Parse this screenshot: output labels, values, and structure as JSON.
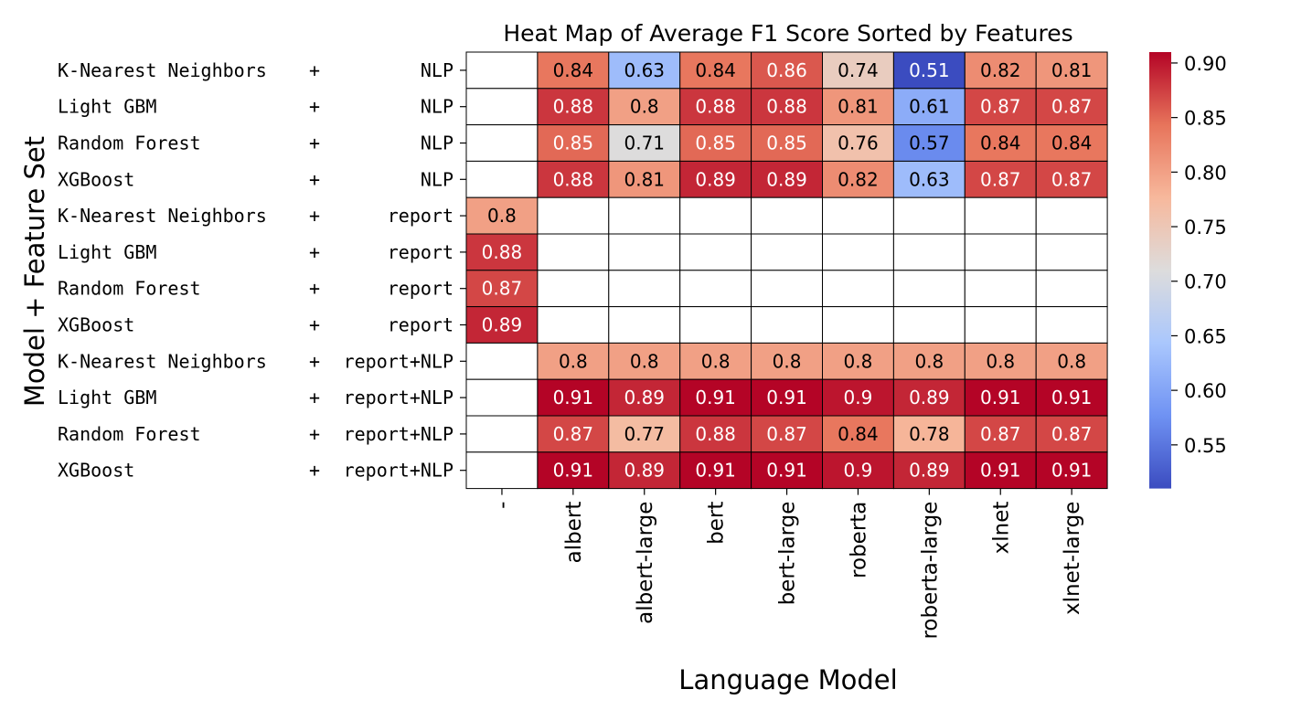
{
  "chart_data": {
    "type": "heatmap",
    "title": "Heat Map of Average F1 Score Sorted by Features",
    "xlabel": "Language Model",
    "ylabel": "Model + Feature Set",
    "columns": [
      "-",
      "albert",
      "albert-large",
      "bert",
      "bert-large",
      "roberta",
      "roberta-large",
      "xlnet",
      "xlnet-large"
    ],
    "rows": [
      {
        "model": "K-Nearest Neighbors",
        "sep": "+",
        "feature": "NLP"
      },
      {
        "model": "Light GBM",
        "sep": "+",
        "feature": "NLP"
      },
      {
        "model": "Random Forest",
        "sep": "+",
        "feature": "NLP"
      },
      {
        "model": "XGBoost",
        "sep": "+",
        "feature": "NLP"
      },
      {
        "model": "K-Nearest Neighbors",
        "sep": "+",
        "feature": "report"
      },
      {
        "model": "Light GBM",
        "sep": "+",
        "feature": "report"
      },
      {
        "model": "Random Forest",
        "sep": "+",
        "feature": "report"
      },
      {
        "model": "XGBoost",
        "sep": "+",
        "feature": "report"
      },
      {
        "model": "K-Nearest Neighbors",
        "sep": "+",
        "feature": "report+NLP"
      },
      {
        "model": "Light GBM",
        "sep": "+",
        "feature": "report+NLP"
      },
      {
        "model": "Random Forest",
        "sep": "+",
        "feature": "report+NLP"
      },
      {
        "model": "XGBoost",
        "sep": "+",
        "feature": "report+NLP"
      }
    ],
    "values": [
      [
        null,
        0.84,
        0.63,
        0.84,
        0.86,
        0.74,
        0.51,
        0.82,
        0.81
      ],
      [
        null,
        0.88,
        0.8,
        0.88,
        0.88,
        0.81,
        0.61,
        0.87,
        0.87
      ],
      [
        null,
        0.85,
        0.71,
        0.85,
        0.85,
        0.76,
        0.57,
        0.84,
        0.84
      ],
      [
        null,
        0.88,
        0.81,
        0.89,
        0.89,
        0.82,
        0.63,
        0.87,
        0.87
      ],
      [
        0.8,
        null,
        null,
        null,
        null,
        null,
        null,
        null,
        null
      ],
      [
        0.88,
        null,
        null,
        null,
        null,
        null,
        null,
        null,
        null
      ],
      [
        0.87,
        null,
        null,
        null,
        null,
        null,
        null,
        null,
        null
      ],
      [
        0.89,
        null,
        null,
        null,
        null,
        null,
        null,
        null,
        null
      ],
      [
        null,
        0.8,
        0.8,
        0.8,
        0.8,
        0.8,
        0.8,
        0.8,
        0.8
      ],
      [
        null,
        0.91,
        0.89,
        0.91,
        0.91,
        0.9,
        0.89,
        0.91,
        0.91
      ],
      [
        null,
        0.87,
        0.77,
        0.88,
        0.87,
        0.84,
        0.78,
        0.87,
        0.87
      ],
      [
        null,
        0.91,
        0.89,
        0.91,
        0.91,
        0.9,
        0.89,
        0.91,
        0.91
      ]
    ],
    "colormap": "coolwarm",
    "colormap_stops": [
      "#3b4cc0",
      "#6f92f3",
      "#aac7fd",
      "#dddcdc",
      "#f7b89c",
      "#e7745b",
      "#b40426"
    ],
    "vmin": 0.51,
    "vmax": 0.91,
    "colorbar_ticks": [
      "0.55",
      "0.60",
      "0.65",
      "0.70",
      "0.75",
      "0.80",
      "0.85",
      "0.90"
    ],
    "missing_color": "#ffffff",
    "grid": true
  }
}
